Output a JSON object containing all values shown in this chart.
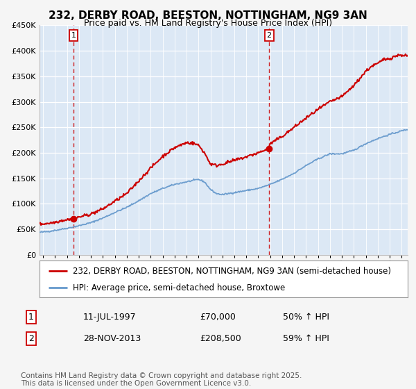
{
  "title": "232, DERBY ROAD, BEESTON, NOTTINGHAM, NG9 3AN",
  "subtitle": "Price paid vs. HM Land Registry's House Price Index (HPI)",
  "legend_line1": "232, DERBY ROAD, BEESTON, NOTTINGHAM, NG9 3AN (semi-detached house)",
  "legend_line2": "HPI: Average price, semi-detached house, Broxtowe",
  "footer": "Contains HM Land Registry data © Crown copyright and database right 2025.\nThis data is licensed under the Open Government Licence v3.0.",
  "transaction1_date": "11-JUL-1997",
  "transaction1_price": "£70,000",
  "transaction1_hpi": "50% ↑ HPI",
  "transaction1_year": 1997.55,
  "transaction1_value": 70000,
  "transaction2_date": "28-NOV-2013",
  "transaction2_price": "£208,500",
  "transaction2_hpi": "59% ↑ HPI",
  "transaction2_year": 2013.91,
  "transaction2_value": 208500,
  "ylim": [
    0,
    450000
  ],
  "yticks": [
    0,
    50000,
    100000,
    150000,
    200000,
    250000,
    300000,
    350000,
    400000,
    450000
  ],
  "xlim_start": 1994.7,
  "xlim_end": 2025.5,
  "red_color": "#cc0000",
  "blue_color": "#6699cc",
  "fig_bg_color": "#f5f5f5",
  "plot_bg_color": "#dce8f5",
  "grid_color": "#ffffff",
  "title_fontsize": 11,
  "subtitle_fontsize": 9,
  "axis_fontsize": 8,
  "legend_fontsize": 8.5,
  "footer_fontsize": 7.5,
  "hpi_keypoints_x": [
    1994.7,
    1995.5,
    1996,
    1997,
    1998,
    1999,
    2000,
    2001,
    2002,
    2003,
    2004,
    2005,
    2006,
    2007,
    2008,
    2008.5,
    2009,
    2009.5,
    2010,
    2011,
    2012,
    2013,
    2014,
    2015,
    2016,
    2017,
    2018,
    2019,
    2020,
    2021,
    2022,
    2023,
    2024,
    2025,
    2025.5
  ],
  "hpi_keypoints_y": [
    44000,
    46000,
    48000,
    52000,
    57000,
    63000,
    72000,
    83000,
    93000,
    106000,
    120000,
    130000,
    138000,
    143000,
    148000,
    143000,
    128000,
    120000,
    118000,
    122000,
    126000,
    130000,
    138000,
    148000,
    160000,
    175000,
    188000,
    198000,
    198000,
    205000,
    218000,
    228000,
    236000,
    243000,
    246000
  ],
  "red_keypoints_x": [
    1994.7,
    1995.5,
    1996,
    1996.5,
    1997,
    1997.55,
    1998,
    1999,
    2000,
    2001,
    2002,
    2003,
    2004,
    2005,
    2006,
    2007,
    2007.5,
    2008,
    2008.5,
    2009,
    2009.5,
    2010,
    2011,
    2012,
    2012.5,
    2013,
    2013.91,
    2014,
    2015,
    2016,
    2017,
    2018,
    2019,
    2020,
    2021,
    2022,
    2022.5,
    2023,
    2023.5,
    2024,
    2024.5,
    2025,
    2025.5
  ],
  "red_keypoints_y": [
    60000,
    62000,
    64000,
    67000,
    69000,
    70000,
    74000,
    80000,
    90000,
    105000,
    120000,
    145000,
    170000,
    193000,
    210000,
    220000,
    219000,
    215000,
    200000,
    178000,
    175000,
    178000,
    185000,
    192000,
    196000,
    200000,
    208500,
    218000,
    232000,
    250000,
    268000,
    285000,
    300000,
    310000,
    332000,
    360000,
    370000,
    375000,
    383000,
    385000,
    390000,
    392000,
    390000
  ]
}
